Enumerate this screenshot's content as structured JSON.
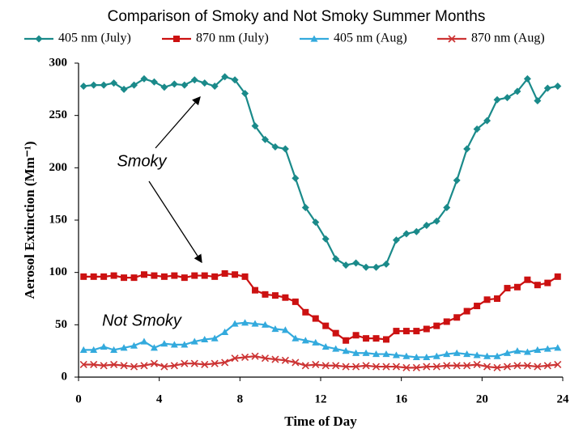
{
  "chart_data": {
    "type": "line",
    "title": "Comparison of Smoky and Not Smoky Summer Months",
    "x_label": "Time of Day",
    "y_label": "Aerosol Extinction (Mm⁻¹)",
    "xlim": [
      0,
      24
    ],
    "xticks": [
      0,
      4,
      8,
      12,
      16,
      20,
      24
    ],
    "ylim": [
      0,
      300
    ],
    "yticks": [
      0,
      50,
      100,
      150,
      200,
      250,
      300
    ],
    "x": [
      0.25,
      0.75,
      1.25,
      1.75,
      2.25,
      2.75,
      3.25,
      3.75,
      4.25,
      4.75,
      5.25,
      5.75,
      6.25,
      6.75,
      7.25,
      7.75,
      8.25,
      8.75,
      9.25,
      9.75,
      10.25,
      10.75,
      11.25,
      11.75,
      12.25,
      12.75,
      13.25,
      13.75,
      14.25,
      14.75,
      15.25,
      15.75,
      16.25,
      16.75,
      17.25,
      17.75,
      18.25,
      18.75,
      19.25,
      19.75,
      20.25,
      20.75,
      21.25,
      21.75,
      22.25,
      22.75,
      23.25,
      23.75
    ],
    "series": [
      {
        "name": "405 nm (July)",
        "color": "#1a8a8a",
        "marker": "diamond",
        "values": [
          278,
          279,
          279,
          281,
          275,
          279,
          285,
          282,
          277,
          280,
          279,
          284,
          281,
          278,
          287,
          284,
          271,
          240,
          227,
          220,
          218,
          190,
          162,
          148,
          132,
          113,
          107,
          109,
          105,
          105,
          108,
          131,
          137,
          139,
          145,
          149,
          162,
          188,
          218,
          237,
          245,
          265,
          267,
          273,
          285,
          264,
          276,
          278
        ]
      },
      {
        "name": "870 nm (July)",
        "color": "#cc1111",
        "marker": "square",
        "values": [
          96,
          96,
          96,
          97,
          95,
          95,
          98,
          97,
          96,
          97,
          95,
          97,
          97,
          96,
          99,
          98,
          96,
          83,
          79,
          78,
          76,
          72,
          62,
          56,
          49,
          42,
          35,
          40,
          37,
          37,
          36,
          44,
          44,
          44,
          46,
          49,
          53,
          57,
          63,
          68,
          74,
          75,
          85,
          86,
          93,
          88,
          90,
          96
        ]
      },
      {
        "name": "405 nm (Aug)",
        "color": "#33aadd",
        "marker": "triangle",
        "values": [
          26,
          26,
          29,
          26,
          28,
          30,
          34,
          28,
          32,
          31,
          31,
          34,
          36,
          37,
          43,
          51,
          52,
          51,
          50,
          46,
          45,
          37,
          35,
          33,
          29,
          27,
          25,
          23,
          23,
          22,
          22,
          21,
          20,
          19,
          19,
          20,
          22,
          23,
          22,
          21,
          20,
          20,
          23,
          25,
          24,
          26,
          27,
          28
        ]
      },
      {
        "name": "870 nm (Aug)",
        "color": "#cc3333",
        "marker": "x",
        "values": [
          12,
          12,
          11,
          12,
          11,
          10,
          11,
          13,
          10,
          11,
          13,
          13,
          12,
          13,
          14,
          18,
          19,
          20,
          18,
          17,
          16,
          14,
          11,
          12,
          11,
          11,
          10,
          10,
          11,
          10,
          10,
          10,
          9,
          9,
          10,
          10,
          11,
          11,
          11,
          12,
          10,
          9,
          10,
          11,
          11,
          10,
          11,
          12
        ]
      }
    ],
    "annotations": [
      "Smoky",
      "Not Smoky"
    ],
    "legend": "top"
  }
}
